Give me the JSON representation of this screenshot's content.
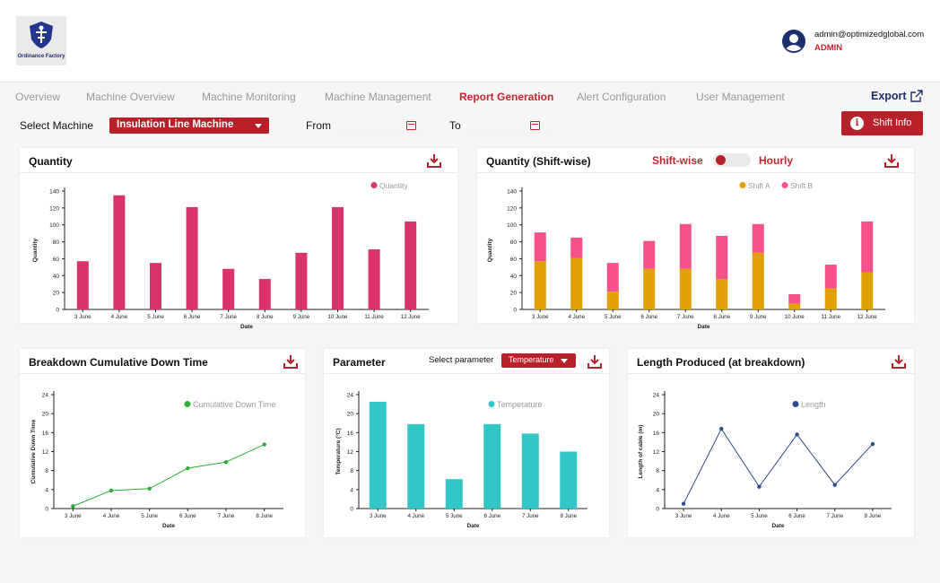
{
  "brand": {
    "logo_text": "Ordinance Factory"
  },
  "user": {
    "email": "admin@optimizedglobal.com",
    "role": "ADMIN"
  },
  "nav": {
    "items": [
      "Overview",
      "Machine Overview",
      "Machine Monitoring",
      "Machine Management",
      "Report Generation",
      "Alert Configuration",
      "User Management"
    ],
    "active": "Report Generation",
    "export_label": "Export"
  },
  "filters": {
    "select_machine_label": "Select Machine",
    "machine_value": "Insulation Line Machine",
    "from_label": "From",
    "to_label": "To",
    "shift_info_label": "Shift Info"
  },
  "colors": {
    "accent": "#b8212a",
    "pink": "#d9336a",
    "shiftA": "#e0a106",
    "shiftB": "#f7508a",
    "green": "#2fad3a",
    "teal": "#33c6c6",
    "navy": "#2c4a8f"
  },
  "cards": {
    "quantity": {
      "title": "Quantity"
    },
    "shiftwise": {
      "title": "Quantity (Shift-wise)",
      "toggle_left": "Shift-wise",
      "toggle_right": "Hourly"
    },
    "downtime": {
      "title": "Breakdown Cumulative Down Time"
    },
    "parameter": {
      "title": "Parameter",
      "select_label": "Select parameter",
      "select_value": "Temperature"
    },
    "length": {
      "title": "Length Produced (at breakdown)"
    }
  },
  "chart_data": [
    {
      "type": "bar",
      "id": "quantity",
      "categories": [
        "3 June",
        "4 June",
        "5 June",
        "6 June",
        "7 June",
        "8 June",
        "9 June",
        "10 June",
        "11 June",
        "12 June"
      ],
      "series": [
        {
          "name": "Quantity",
          "values": [
            57,
            135,
            55,
            121,
            48,
            36,
            67,
            121,
            71,
            104
          ]
        }
      ],
      "xlabel": "Date",
      "ylabel": "Quantity",
      "ylim": [
        0,
        140
      ],
      "yticks": [
        0,
        20,
        40,
        60,
        80,
        100,
        120,
        140
      ],
      "legend": "top-right"
    },
    {
      "type": "bar",
      "id": "shiftwise",
      "stacked": true,
      "categories": [
        "3 June",
        "4 June",
        "5 June",
        "6 June",
        "7 June",
        "8 June",
        "9 June",
        "10 June",
        "11 June",
        "12 June"
      ],
      "series": [
        {
          "name": "Shift A",
          "values": [
            57,
            61,
            21,
            48,
            48,
            36,
            67,
            7,
            25,
            44
          ]
        },
        {
          "name": "Shift B",
          "values": [
            34,
            24,
            34,
            33,
            53,
            51,
            34,
            11,
            28,
            60
          ]
        }
      ],
      "xlabel": "Date",
      "ylabel": "Quantity",
      "ylim": [
        0,
        140
      ],
      "yticks": [
        0,
        20,
        40,
        60,
        80,
        100,
        120,
        140
      ],
      "legend": "top-right"
    },
    {
      "type": "line",
      "id": "downtime",
      "categories": [
        "3 June",
        "4 June",
        "5 June",
        "6 June",
        "7 June",
        "8 June"
      ],
      "series": [
        {
          "name": "Cumulative Down Time",
          "values": [
            0.5,
            3.8,
            4.2,
            8.5,
            9.8,
            13.5
          ]
        }
      ],
      "xlabel": "Date",
      "ylabel": "Cumulative Down Time",
      "ylim": [
        0,
        24
      ],
      "yticks": [
        0,
        4,
        8,
        12,
        16,
        20,
        24
      ],
      "legend": "top-right"
    },
    {
      "type": "bar",
      "id": "parameter",
      "categories": [
        "3 June",
        "4 June",
        "5 June",
        "6 June",
        "7 June",
        "8 June"
      ],
      "series": [
        {
          "name": "Temperature",
          "values": [
            22.5,
            17.8,
            6.2,
            17.8,
            15.8,
            12
          ]
        }
      ],
      "xlabel": "Date",
      "ylabel": "Temperature (°C)",
      "ylim": [
        0,
        24
      ],
      "yticks": [
        0,
        4,
        8,
        12,
        16,
        20,
        24
      ],
      "legend": "top-right"
    },
    {
      "type": "line",
      "id": "length",
      "categories": [
        "3 June",
        "4 June",
        "5 June",
        "6 June",
        "7 June",
        "8 June"
      ],
      "series": [
        {
          "name": "Length",
          "values": [
            1,
            16.8,
            4.6,
            15.6,
            5,
            13.6
          ]
        }
      ],
      "xlabel": "Date",
      "ylabel": "Length of cable (m)",
      "ylim": [
        0,
        24
      ],
      "yticks": [
        0,
        4,
        8,
        12,
        16,
        20,
        24
      ],
      "legend": "top-right"
    }
  ]
}
